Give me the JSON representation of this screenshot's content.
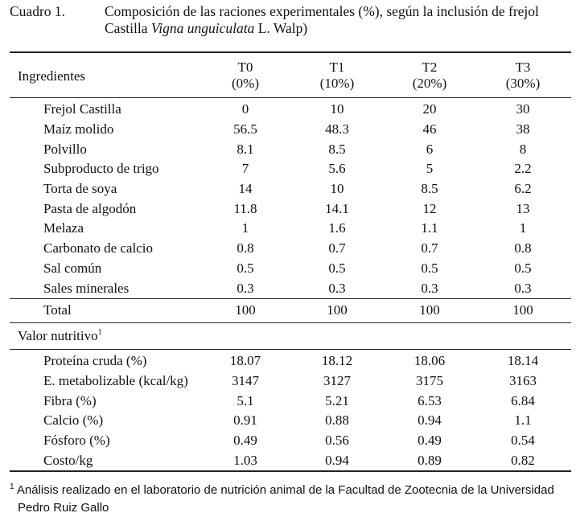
{
  "caption": {
    "label": "Cuadro 1.",
    "line1": "Composición de las raciones experimentales (%), según la inclusión de frejol",
    "line2_prefix": "Castilla ",
    "line2_italic": "Vigna unguiculata",
    "line2_suffix": " L. Walp)"
  },
  "table": {
    "header": {
      "label": "Ingredientes",
      "columns": [
        {
          "name": "T0",
          "pct": "(0%)"
        },
        {
          "name": "T1",
          "pct": "(10%)"
        },
        {
          "name": "T2",
          "pct": "(20%)"
        },
        {
          "name": "T3",
          "pct": "(30%)"
        }
      ]
    },
    "ingredients": [
      {
        "name": "Frejol Castilla",
        "values": [
          "0",
          "10",
          "20",
          "30"
        ]
      },
      {
        "name": "Maíz molido",
        "values": [
          "56.5",
          "48.3",
          "46",
          "38"
        ]
      },
      {
        "name": "Polvillo",
        "values": [
          "8.1",
          "8.5",
          "6",
          "8"
        ]
      },
      {
        "name": "Subproducto de trigo",
        "values": [
          "7",
          "5.6",
          "5",
          "2.2"
        ]
      },
      {
        "name": "Torta de soya",
        "values": [
          "14",
          "10",
          "8.5",
          "6.2"
        ]
      },
      {
        "name": "Pasta de algodón",
        "values": [
          "11.8",
          "14.1",
          "12",
          "13"
        ]
      },
      {
        "name": "Melaza",
        "values": [
          "1",
          "1.6",
          "1.1",
          "1"
        ]
      },
      {
        "name": "Carbonato de calcio",
        "values": [
          "0.8",
          "0.7",
          "0.7",
          "0.8"
        ]
      },
      {
        "name": "Sal común",
        "values": [
          "0.5",
          "0.5",
          "0.5",
          "0.5"
        ]
      },
      {
        "name": "Sales minerales",
        "values": [
          "0.3",
          "0.3",
          "0.3",
          "0.3"
        ]
      }
    ],
    "total": {
      "name": "Total",
      "values": [
        "100",
        "100",
        "100",
        "100"
      ]
    },
    "nutritive": {
      "label": "Valor nutritivo",
      "sup": "1",
      "rows": [
        {
          "name": "Proteína cruda (%)",
          "values": [
            "18.07",
            "18.12",
            "18.06",
            "18.14"
          ]
        },
        {
          "name": "E. metabolizable (kcal/kg)",
          "values": [
            "3147",
            "3127",
            "3175",
            "3163"
          ]
        },
        {
          "name": "Fibra (%)",
          "values": [
            "5.1",
            "5.21",
            "6.53",
            "6.84"
          ]
        },
        {
          "name": "Calcio (%)",
          "values": [
            "0.91",
            "0.88",
            "0.94",
            "1.1"
          ]
        },
        {
          "name": "Fósforo (%)",
          "values": [
            "0.49",
            "0.56",
            "0.49",
            "0.54"
          ]
        },
        {
          "name": "Costo/kg",
          "values": [
            "1.03",
            "0.94",
            "0.89",
            "0.82"
          ]
        }
      ]
    }
  },
  "footnote": {
    "sup": "1",
    "line1": " Análisis realizado en el laboratorio de nutrición animal de la Facultad de Zootecnia de la Universidad",
    "line2": "Pedro Ruiz Gallo"
  }
}
